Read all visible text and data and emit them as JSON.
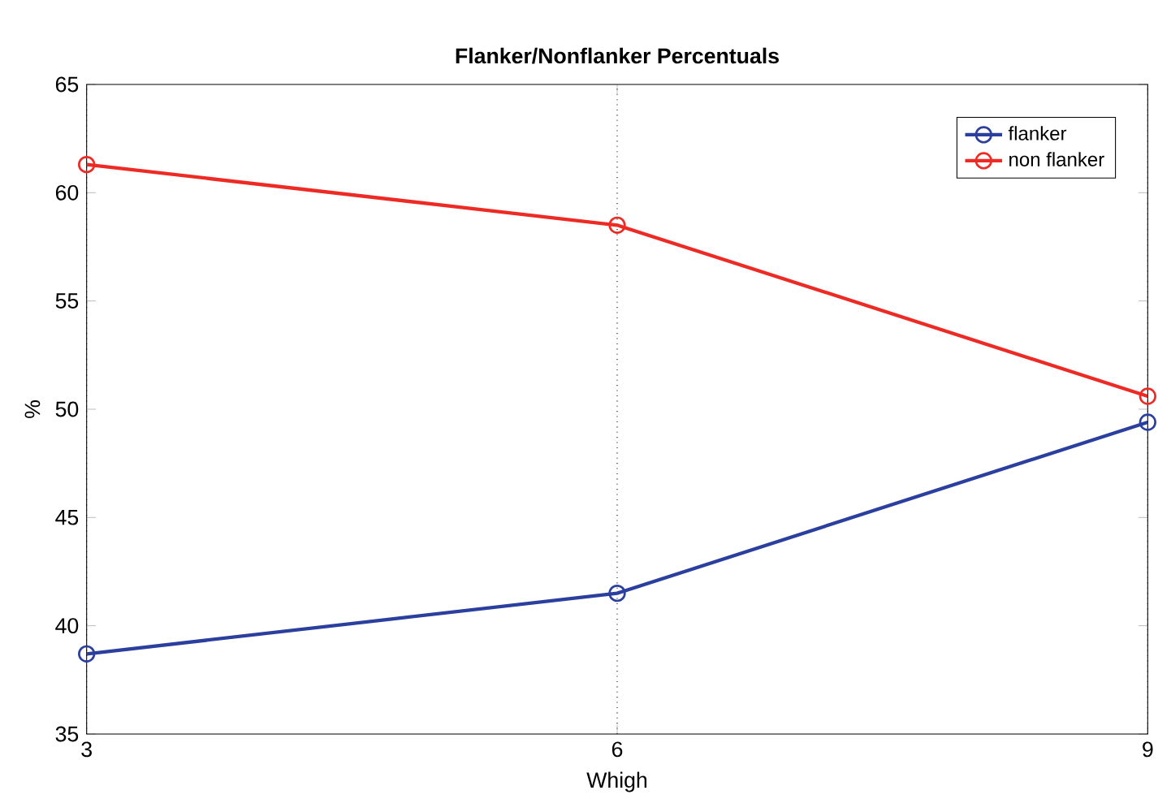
{
  "chart_data": {
    "type": "line",
    "title": "Flanker/Nonflanker Percentuals",
    "xlabel": "Whigh",
    "ylabel": "%",
    "x": [
      3,
      6,
      9
    ],
    "series": [
      {
        "name": "flanker",
        "color": "#2b3f9e",
        "values": [
          38.7,
          41.5,
          49.4
        ]
      },
      {
        "name": "non flanker",
        "color": "#ee2a24",
        "values": [
          61.3,
          58.5,
          50.6
        ]
      }
    ],
    "xlim": [
      3,
      9
    ],
    "xticks": [
      3,
      6,
      9
    ],
    "ylim": [
      35,
      65
    ],
    "yticks": [
      35,
      40,
      45,
      50,
      55,
      60,
      65
    ],
    "grid": "x",
    "legend": "top right",
    "marker": "circle",
    "line_style": "solid"
  }
}
